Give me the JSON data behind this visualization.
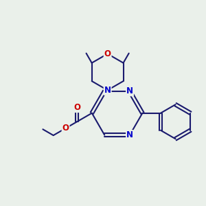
{
  "bg_color": "#eaf0ea",
  "bond_color": "#1a1a6e",
  "atom_colors": {
    "O": "#cc0000",
    "N": "#0000cc",
    "C": "#1a1a6e"
  },
  "line_width": 1.5,
  "figsize": [
    3.0,
    3.0
  ],
  "dpi": 100,
  "xlim": [
    0,
    10
  ],
  "ylim": [
    0,
    10
  ]
}
